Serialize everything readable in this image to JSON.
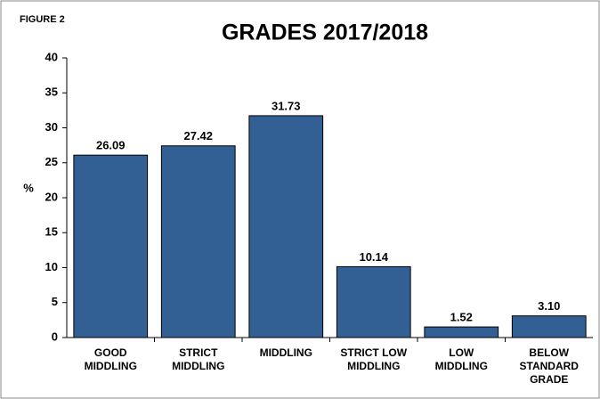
{
  "chart_data": {
    "type": "bar",
    "figure_label": "FIGURE 2",
    "title": "GRADES 2017/2018",
    "y_label": "%",
    "categories": [
      "GOOD\nMIDDLING",
      "STRICT\nMIDDLING",
      "MIDDLING",
      "STRICT LOW\nMIDDLING",
      "LOW\nMIDDLING",
      "BELOW\nSTANDARD\nGRADE"
    ],
    "values": [
      26.09,
      27.42,
      31.73,
      10.14,
      1.52,
      3.1
    ],
    "value_labels": [
      "26.09",
      "27.42",
      "31.73",
      "10.14",
      "1.52",
      "3.10"
    ],
    "color": "#336094",
    "ylim": [
      0,
      40
    ],
    "yticks": [
      0,
      5,
      10,
      15,
      20,
      25,
      30,
      35,
      40
    ],
    "grid": false
  }
}
